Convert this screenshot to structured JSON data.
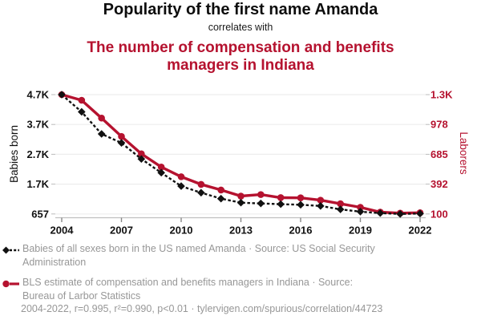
{
  "header": {
    "title": "Popularity of the first name Amanda",
    "connector": "correlates with",
    "subtitle": "The number of compensation and benefits managers in Indiana"
  },
  "colors": {
    "red": "#b5122f",
    "black": "#111111",
    "gray_text": "#979797",
    "gridline": "#ededed",
    "axis_line": "#c0c0c0",
    "tick_mark": "#888888"
  },
  "chart_data": {
    "type": "line",
    "x": [
      2004,
      2005,
      2006,
      2007,
      2008,
      2009,
      2010,
      2011,
      2012,
      2013,
      2014,
      2015,
      2016,
      2017,
      2018,
      2019,
      2020,
      2021,
      2022
    ],
    "x_ticks": [
      2004,
      2007,
      2010,
      2013,
      2016,
      2019,
      2022
    ],
    "series": [
      {
        "name": "Babies of all sexes born in the US named Amanda",
        "axis": "left",
        "color": "#111111",
        "style": "dashed",
        "marker": "diamond",
        "values": [
          4657,
          4080,
          3340,
          3040,
          2500,
          2040,
          1590,
          1370,
          1170,
          1035,
          1010,
          985,
          965,
          925,
          810,
          735,
          685,
          657,
          670
        ]
      },
      {
        "name": "BLS estimate of compensation and benefits managers in Indiana",
        "axis": "right",
        "color": "#b5122f",
        "style": "solid",
        "marker": "circle",
        "values": [
          1270,
          1215,
          1040,
          860,
          690,
          560,
          465,
          390,
          335,
          275,
          290,
          260,
          258,
          235,
          200,
          165,
          118,
          108,
          112
        ]
      }
    ],
    "left_axis": {
      "label": "Babies born",
      "ticks": [
        "4.7K",
        "3.7K",
        "2.7K",
        "1.7K",
        "657"
      ],
      "tick_values": [
        4657,
        3657,
        2657,
        1657,
        657
      ],
      "min": 657,
      "max": 4657
    },
    "right_axis": {
      "label": "Laborers",
      "ticks": [
        "1.3K",
        "978",
        "685",
        "392",
        "100"
      ],
      "tick_values": [
        1270,
        977.5,
        685,
        392.5,
        100
      ],
      "min": 100,
      "max": 1270
    },
    "legend_position": "bottom",
    "grid": "horizontal"
  },
  "legend": [
    {
      "marker": "black-diamond-dashed",
      "lines": [
        "Babies of all sexes born in the US named Amanda · Source: US Social Security",
        "Administration"
      ]
    },
    {
      "marker": "red-circle-solid",
      "lines": [
        "BLS estimate of compensation and benefits managers in Indiana · Source:",
        "Bureau of Larbor Statistics"
      ]
    }
  ],
  "footer": "2004-2022, r=0.995, r²=0.990, p<0.01 · tylervigen.com/spurious/correlation/44723"
}
